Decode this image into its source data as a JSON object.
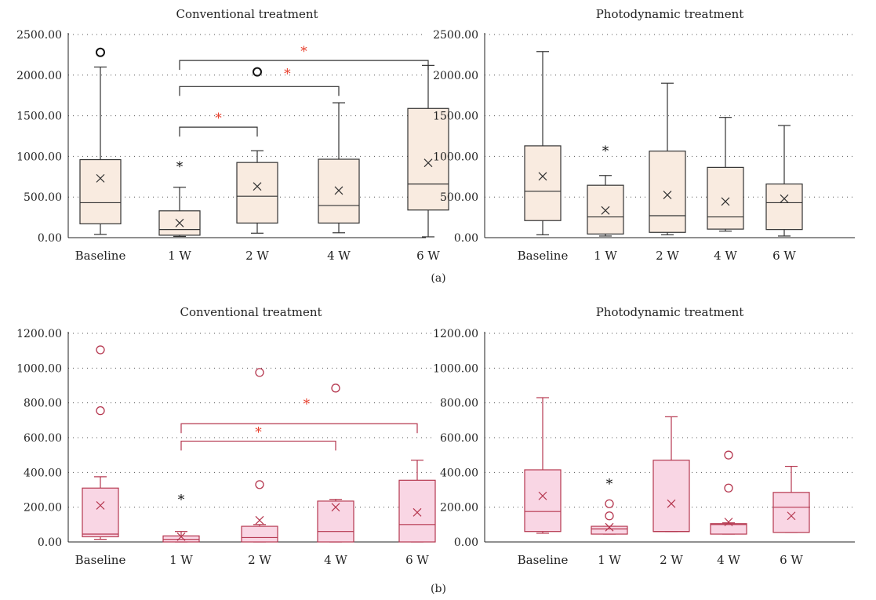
{
  "figure": {
    "label_a": "(a)",
    "label_b": "(b)"
  },
  "colors": {
    "a_fill": "#f9ebe0",
    "a_stroke": "#333333",
    "b_fill": "#f9d6e4",
    "b_stroke": "#b5374f",
    "sig": "#e8402e",
    "grid": "#555555",
    "axis": "#222222"
  },
  "chart_data": [
    {
      "id": "a-conventional",
      "type": "box",
      "title": "Conventional treatment",
      "xlabel": "",
      "ylabel": "",
      "categories": [
        "Baseline",
        "1 W",
        "2 W",
        "4 W",
        "6 W"
      ],
      "ylim": [
        0,
        2500
      ],
      "yticks": [
        0,
        500,
        1000,
        1500,
        2000,
        2500
      ],
      "tick_format": "0.00",
      "grid": "dotted-horizontal",
      "boxes": [
        {
          "min": 40,
          "q1": 170,
          "median": 430,
          "q3": 960,
          "max": 2100,
          "mean": 730
        },
        {
          "min": 15,
          "q1": 30,
          "median": 100,
          "q3": 330,
          "max": 620,
          "mean": 180
        },
        {
          "min": 55,
          "q1": 180,
          "median": 510,
          "q3": 925,
          "max": 1070,
          "mean": 630
        },
        {
          "min": 60,
          "q1": 180,
          "median": 395,
          "q3": 965,
          "max": 1660,
          "mean": 580
        },
        {
          "min": 10,
          "q1": 340,
          "median": 660,
          "q3": 1590,
          "max": 2120,
          "mean": 920
        }
      ],
      "outliers": [
        {
          "cat": 0,
          "value": 2280,
          "marker": "circle"
        },
        {
          "cat": 1,
          "value": 900,
          "marker": "star"
        }
      ],
      "annotations": [
        {
          "kind": "bracket",
          "from": 1,
          "to": 4,
          "level": 2180,
          "label": "*"
        },
        {
          "kind": "outlier-circle",
          "cat": 2,
          "value": 2040
        },
        {
          "kind": "star",
          "cat": 2,
          "value": 2040,
          "label": "*",
          "offset": 0.38
        },
        {
          "kind": "bracket",
          "from": 1,
          "to": 3,
          "level": 1860,
          "label": ""
        },
        {
          "kind": "bracket",
          "from": 1,
          "to": 2,
          "level": 1360,
          "label": "*"
        }
      ]
    },
    {
      "id": "a-photodynamic",
      "type": "box",
      "title": "Photodynamic treatment",
      "xlabel": "",
      "ylabel": "",
      "categories": [
        "Baseline",
        "1 W",
        "2 W",
        "4 W",
        "6 W"
      ],
      "ylim": [
        0,
        2500
      ],
      "yticks": [
        0,
        500,
        1000,
        1500,
        2000,
        2500
      ],
      "tick_format": "0.00",
      "grid": "dotted-horizontal",
      "boxes": [
        {
          "min": 35,
          "q1": 210,
          "median": 570,
          "q3": 1130,
          "max": 2290,
          "mean": 755
        },
        {
          "min": 20,
          "q1": 45,
          "median": 255,
          "q3": 645,
          "max": 765,
          "mean": 335
        },
        {
          "min": 35,
          "q1": 65,
          "median": 270,
          "q3": 1065,
          "max": 1900,
          "mean": 525
        },
        {
          "min": 80,
          "q1": 105,
          "median": 255,
          "q3": 865,
          "max": 1480,
          "mean": 445
        },
        {
          "min": 20,
          "q1": 100,
          "median": 430,
          "q3": 660,
          "max": 1380,
          "mean": 480
        }
      ],
      "outliers": [
        {
          "cat": 1,
          "value": 1090,
          "marker": "star"
        }
      ],
      "annotations": []
    },
    {
      "id": "b-conventional",
      "type": "box",
      "title": "Conventional treatment",
      "xlabel": "",
      "ylabel": "",
      "categories": [
        "Baseline",
        "1 W",
        "2 W",
        "4 W",
        "6 W"
      ],
      "ylim": [
        0,
        1200
      ],
      "yticks": [
        0,
        200,
        400,
        600,
        800,
        1000,
        1200
      ],
      "tick_format": "0.00",
      "grid": "dotted-horizontal",
      "boxes": [
        {
          "min": 15,
          "q1": 30,
          "median": 45,
          "q3": 310,
          "max": 375,
          "mean": 210
        },
        {
          "min": 0,
          "q1": 0,
          "median": 15,
          "q3": 35,
          "max": 60,
          "mean": 30
        },
        {
          "min": 0,
          "q1": 0,
          "median": 25,
          "q3": 90,
          "max": 100,
          "mean": 125
        },
        {
          "min": 0,
          "q1": 0,
          "median": 60,
          "q3": 235,
          "max": 245,
          "mean": 200
        },
        {
          "min": 0,
          "q1": 0,
          "median": 100,
          "q3": 355,
          "max": 470,
          "mean": 170
        }
      ],
      "outliers": [
        {
          "cat": 0,
          "value": 1105,
          "marker": "circle"
        },
        {
          "cat": 0,
          "value": 755,
          "marker": "circle"
        },
        {
          "cat": 1,
          "value": 255,
          "marker": "star"
        },
        {
          "cat": 2,
          "value": 975,
          "marker": "circle"
        },
        {
          "cat": 2,
          "value": 330,
          "marker": "circle"
        },
        {
          "cat": 3,
          "value": 885,
          "marker": "circle"
        }
      ],
      "annotations": [
        {
          "kind": "star",
          "cat": 3,
          "value": 805,
          "label": "*",
          "offset": -0.36
        },
        {
          "kind": "bracket",
          "from": 1,
          "to": 4,
          "level": 680,
          "label": ""
        },
        {
          "kind": "bracket",
          "from": 1,
          "to": 3,
          "level": 580,
          "label": "*"
        }
      ]
    },
    {
      "id": "b-photodynamic",
      "type": "box",
      "title": "Photodynamic treatment",
      "xlabel": "",
      "ylabel": "",
      "categories": [
        "Baseline",
        "1 W",
        "2 W",
        "4 W",
        "6 W"
      ],
      "ylim": [
        0,
        1200
      ],
      "yticks": [
        0,
        200,
        400,
        600,
        800,
        1000,
        1200
      ],
      "tick_format": "0.00",
      "grid": "dotted-horizontal",
      "boxes": [
        {
          "min": 50,
          "q1": 60,
          "median": 175,
          "q3": 415,
          "max": 830,
          "mean": 265
        },
        {
          "min": 45,
          "q1": 45,
          "median": 75,
          "q3": 90,
          "max": 90,
          "mean": 85
        },
        {
          "min": 60,
          "q1": 60,
          "median": 60,
          "q3": 470,
          "max": 720,
          "mean": 220
        },
        {
          "min": 45,
          "q1": 45,
          "median": 100,
          "q3": 105,
          "max": 110,
          "mean": 115
        },
        {
          "min": 55,
          "q1": 55,
          "median": 200,
          "q3": 285,
          "max": 435,
          "mean": 150
        }
      ],
      "outliers": [
        {
          "cat": 1,
          "value": 345,
          "marker": "star"
        },
        {
          "cat": 1,
          "value": 220,
          "marker": "circle"
        },
        {
          "cat": 1,
          "value": 150,
          "marker": "circle"
        },
        {
          "cat": 3,
          "value": 500,
          "marker": "circle"
        },
        {
          "cat": 3,
          "value": 310,
          "marker": "circle"
        }
      ],
      "annotations": []
    }
  ]
}
